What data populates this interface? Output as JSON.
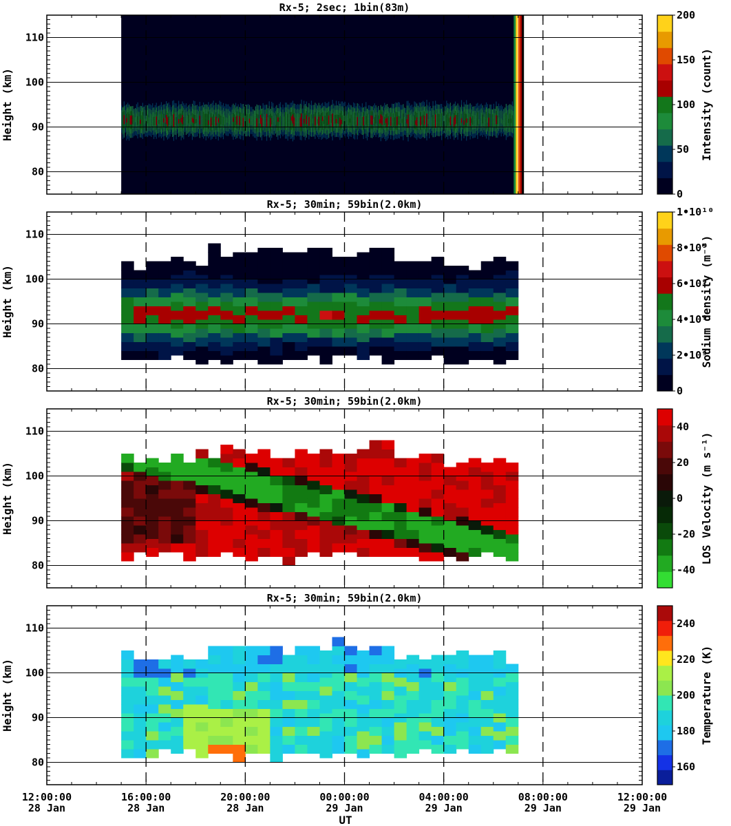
{
  "figure": {
    "xlabel": "UT"
  },
  "chart_data": [
    {
      "type": "heatmap",
      "title": "Rx-5;  2sec; 1bin(83m)",
      "ylabel": "Height (km)",
      "yticks": [
        "80",
        "90",
        "100",
        "110"
      ],
      "ylim": [
        75,
        115
      ],
      "xticks": [
        {
          "time": "12:00:00",
          "date": "28 Jan"
        },
        {
          "time": "16:00:00",
          "date": "28 Jan"
        },
        {
          "time": "20:00:00",
          "date": "28 Jan"
        },
        {
          "time": "00:00:00",
          "date": "29 Jan"
        },
        {
          "time": "04:00:00",
          "date": "29 Jan"
        },
        {
          "time": "08:00:00",
          "date": "29 Jan"
        },
        {
          "time": "12:00:00",
          "date": "29 Jan"
        }
      ],
      "xlim_hours": [
        0,
        24
      ],
      "data_extent_hours": [
        3.0,
        19.2
      ],
      "layer_peak_km": 91,
      "colorbar": {
        "label": "Intensity (count)",
        "ticks": [
          "0",
          "50",
          "100",
          "150",
          "200"
        ],
        "min": 0,
        "max": 200,
        "colors": [
          "#00001f",
          "#001447",
          "#00375a",
          "#156b4a",
          "#1d8b3a",
          "#13771b",
          "#a80000",
          "#cc1010",
          "#e04a00",
          "#e89a00",
          "#ffd21a"
        ]
      }
    },
    {
      "type": "heatmap",
      "title": "Rx-5; 30min; 59bin(2.0km)",
      "ylabel": "Height (km)",
      "yticks": [
        "80",
        "90",
        "100",
        "110"
      ],
      "ylim": [
        75,
        115
      ],
      "xlim_hours": [
        0,
        24
      ],
      "data_extent_hours": [
        3.0,
        19.0
      ],
      "layer_peak_km": 91,
      "colorbar": {
        "label": "Sodium density (m⁻³)",
        "ticks": [
          "0",
          "2•10⁹",
          "4•10⁹",
          "6•10⁹",
          "8•10⁹",
          "1•10¹⁰"
        ],
        "min": 0,
        "max": 10000000000,
        "colors": [
          "#00001f",
          "#001447",
          "#00375a",
          "#156b4a",
          "#1d8b3a",
          "#13771b",
          "#a80000",
          "#cc1010",
          "#e04a00",
          "#e89a00",
          "#ffd21a"
        ]
      }
    },
    {
      "type": "heatmap",
      "title": "Rx-5; 30min; 59bin(2.0km)",
      "ylabel": "Height (km)",
      "yticks": [
        "80",
        "90",
        "100",
        "110"
      ],
      "ylim": [
        75,
        115
      ],
      "xlim_hours": [
        0,
        24
      ],
      "data_extent_hours": [
        3.0,
        19.0
      ],
      "colorbar": {
        "label": "LOS Velocity (m s⁻¹)",
        "ticks": [
          "-40",
          "-20",
          "0",
          "20",
          "40"
        ],
        "min": -50,
        "max": 50,
        "colors": [
          "#33dd33",
          "#22aa22",
          "#127a12",
          "#0a4a0a",
          "#062a06",
          "#0a1a0a",
          "#2a0606",
          "#4a0808",
          "#7a0a0a",
          "#aa0808",
          "#dd0000"
        ]
      }
    },
    {
      "type": "heatmap",
      "title": "Rx-5; 30min; 59bin(2.0km)",
      "ylabel": "Height (km)",
      "yticks": [
        "80",
        "90",
        "100",
        "110"
      ],
      "ylim": [
        75,
        115
      ],
      "xlim_hours": [
        0,
        24
      ],
      "data_extent_hours": [
        3.0,
        19.0
      ],
      "colorbar": {
        "label": "Temperature (K)",
        "ticks": [
          "160",
          "180",
          "200",
          "220",
          "240"
        ],
        "min": 150,
        "max": 250,
        "colors": [
          "#0a1e9a",
          "#1432e6",
          "#1e6ee6",
          "#1ec8f0",
          "#1ed2dc",
          "#32e6b4",
          "#8ce650",
          "#aaf046",
          "#ffe61e",
          "#ff6e0a",
          "#f01e0a",
          "#aa0a0a"
        ]
      }
    }
  ]
}
